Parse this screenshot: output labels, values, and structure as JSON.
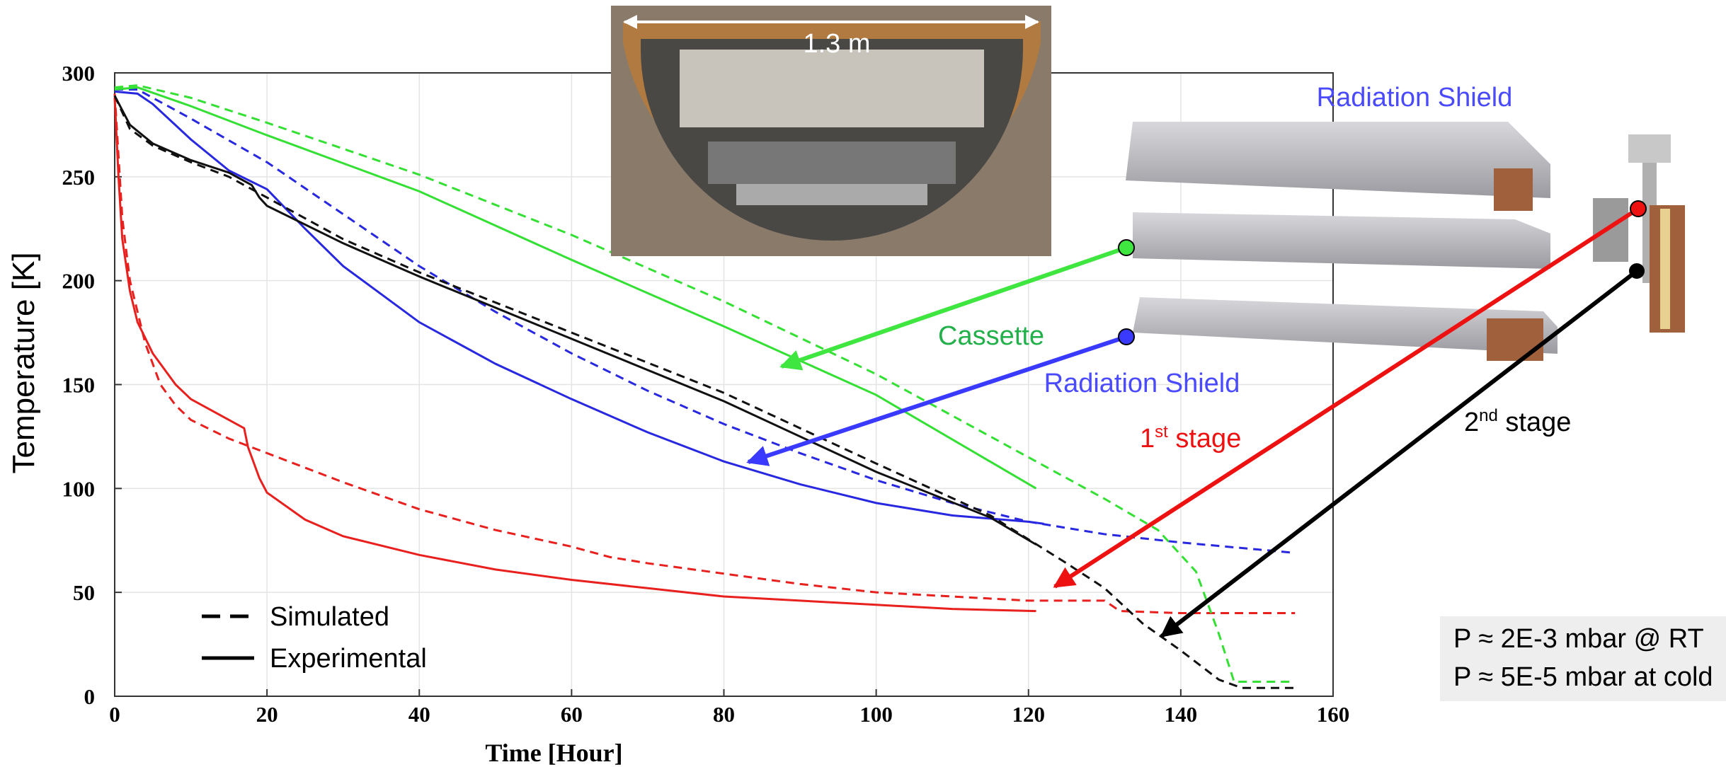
{
  "chart_data": {
    "type": "line",
    "x_label": "Time [Hour]",
    "y_label": "Temperature [K]",
    "xlim": [
      0,
      160
    ],
    "xticks": [
      0,
      20,
      40,
      60,
      80,
      100,
      120,
      140,
      160
    ],
    "ylim": [
      0,
      300
    ],
    "yticks": [
      0,
      50,
      100,
      150,
      200,
      250,
      300
    ],
    "grid": true,
    "legend": [
      {
        "label": "Simulated",
        "dash": true
      },
      {
        "label": "Experimental",
        "dash": false
      }
    ],
    "series": [
      {
        "color": "#e8201e",
        "dash": false,
        "x": [
          0,
          0.5,
          1,
          2,
          3,
          5,
          8,
          10,
          14,
          17,
          17.5,
          19,
          20,
          25,
          30,
          40,
          50,
          60,
          70,
          80,
          90,
          100,
          110,
          121
        ],
        "values": [
          288,
          250,
          220,
          195,
          180,
          165,
          150,
          143,
          135,
          129,
          120,
          105,
          98,
          85,
          77,
          68,
          61,
          56,
          52,
          48,
          46,
          44,
          42,
          41
        ]
      },
      {
        "color": "#e8201e",
        "dash": true,
        "x": [
          0,
          1,
          2,
          4,
          6,
          8,
          10,
          15,
          20,
          30,
          40,
          50,
          60,
          65,
          70,
          80,
          90,
          100,
          110,
          120,
          130,
          132,
          140,
          155
        ],
        "values": [
          290,
          230,
          200,
          170,
          150,
          140,
          133,
          124,
          117,
          103,
          90,
          80,
          72,
          67,
          64,
          59,
          54,
          50,
          48,
          46,
          46,
          41,
          40,
          40
        ]
      },
      {
        "color": "#2828e0",
        "dash": false,
        "x": [
          0,
          3,
          5,
          10,
          15,
          20,
          25,
          30,
          40,
          50,
          60,
          70,
          80,
          90,
          100,
          110,
          120,
          122
        ],
        "values": [
          291,
          290,
          285,
          268,
          253,
          244,
          225,
          207,
          180,
          160,
          143,
          127,
          113,
          102,
          93,
          87,
          84,
          83
        ]
      },
      {
        "color": "#2828e0",
        "dash": true,
        "x": [
          0,
          3,
          10,
          20,
          30,
          40,
          50,
          60,
          70,
          80,
          90,
          100,
          110,
          120,
          130,
          140,
          155
        ],
        "values": [
          292,
          292,
          278,
          257,
          232,
          207,
          185,
          165,
          147,
          131,
          117,
          104,
          93,
          84,
          78,
          74,
          69
        ]
      },
      {
        "color": "#33e033",
        "dash": false,
        "x": [
          0,
          3,
          10,
          20,
          40,
          60,
          80,
          100,
          121
        ],
        "values": [
          292,
          293,
          284,
          270,
          243,
          210,
          178,
          145,
          100
        ]
      },
      {
        "color": "#33e033",
        "dash": true,
        "x": [
          0,
          3,
          10,
          20,
          40,
          60,
          80,
          100,
          120,
          130,
          137,
          142,
          145,
          147,
          155
        ],
        "values": [
          293,
          294,
          288,
          276,
          251,
          222,
          190,
          155,
          115,
          95,
          80,
          60,
          30,
          7,
          7
        ]
      },
      {
        "color": "#111111",
        "dash": false,
        "x": [
          0,
          2,
          5,
          10,
          15,
          18,
          19,
          20,
          30,
          40,
          60,
          80,
          100,
          115,
          121
        ],
        "values": [
          289,
          275,
          266,
          258,
          252,
          246,
          240,
          236,
          218,
          202,
          172,
          142,
          108,
          86,
          73
        ]
      },
      {
        "color": "#111111",
        "dash": true,
        "x": [
          0,
          2,
          5,
          10,
          15,
          20,
          30,
          40,
          60,
          80,
          100,
          115,
          125,
          130,
          135,
          140,
          145,
          148,
          155
        ],
        "values": [
          289,
          273,
          265,
          257,
          250,
          240,
          220,
          204,
          175,
          146,
          112,
          87,
          64,
          52,
          35,
          22,
          8,
          4,
          4
        ]
      }
    ]
  },
  "annotations": {
    "size_label": "1.3 m",
    "shield_top": "Radiation Shield",
    "cassette": "Cassette",
    "shield": "Radiation Shield",
    "stage1": {
      "num": "1",
      "sup": "st",
      "text": " stage"
    },
    "stage2": {
      "num": "2",
      "sup": "nd",
      "text": " stage"
    },
    "pressure": [
      "P ≈ 2E-3 mbar @ RT",
      "P ≈ 5E-5 mbar at cold"
    ]
  }
}
